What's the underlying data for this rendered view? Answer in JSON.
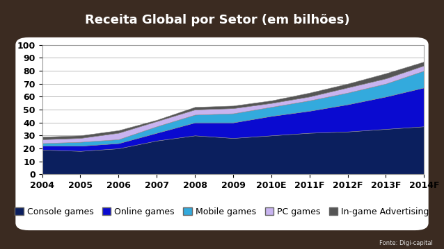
{
  "chart_data": {
    "type": "stacked_area",
    "title": "Receita Global por Setor (em bilhões)",
    "source": "Fonte: Digi-capital",
    "categories": [
      "2004",
      "2005",
      "2006",
      "2007",
      "2008",
      "2009",
      "2010E",
      "2011F",
      "2012F",
      "2013F",
      "2014F"
    ],
    "series": [
      {
        "name": "Console games",
        "color": "#0b1f5e",
        "values": [
          19,
          18,
          20,
          26,
          30,
          28,
          30,
          32,
          33,
          35,
          37
        ]
      },
      {
        "name": "Online games",
        "color": "#0a0ad0",
        "values": [
          3,
          4,
          4,
          6,
          10,
          12,
          15,
          17,
          21,
          25,
          30
        ]
      },
      {
        "name": "Mobile games",
        "color": "#33aadd",
        "values": [
          2,
          3,
          3,
          5,
          6,
          7,
          7,
          8,
          9,
          10,
          13
        ]
      },
      {
        "name": "PC games",
        "color": "#c8b4f0",
        "values": [
          3,
          3,
          5,
          4,
          4,
          4,
          3,
          3,
          4,
          4,
          4
        ]
      },
      {
        "name": "In-game Advertising",
        "color": "#555555",
        "values": [
          2,
          2,
          2,
          1,
          2,
          2,
          2,
          3,
          3,
          4,
          3
        ]
      }
    ],
    "ylim": [
      0,
      100
    ],
    "yticks": [
      0,
      10,
      20,
      30,
      40,
      50,
      60,
      70,
      80,
      90,
      100
    ],
    "stacked": true,
    "grid": true,
    "legend": "lower center"
  }
}
